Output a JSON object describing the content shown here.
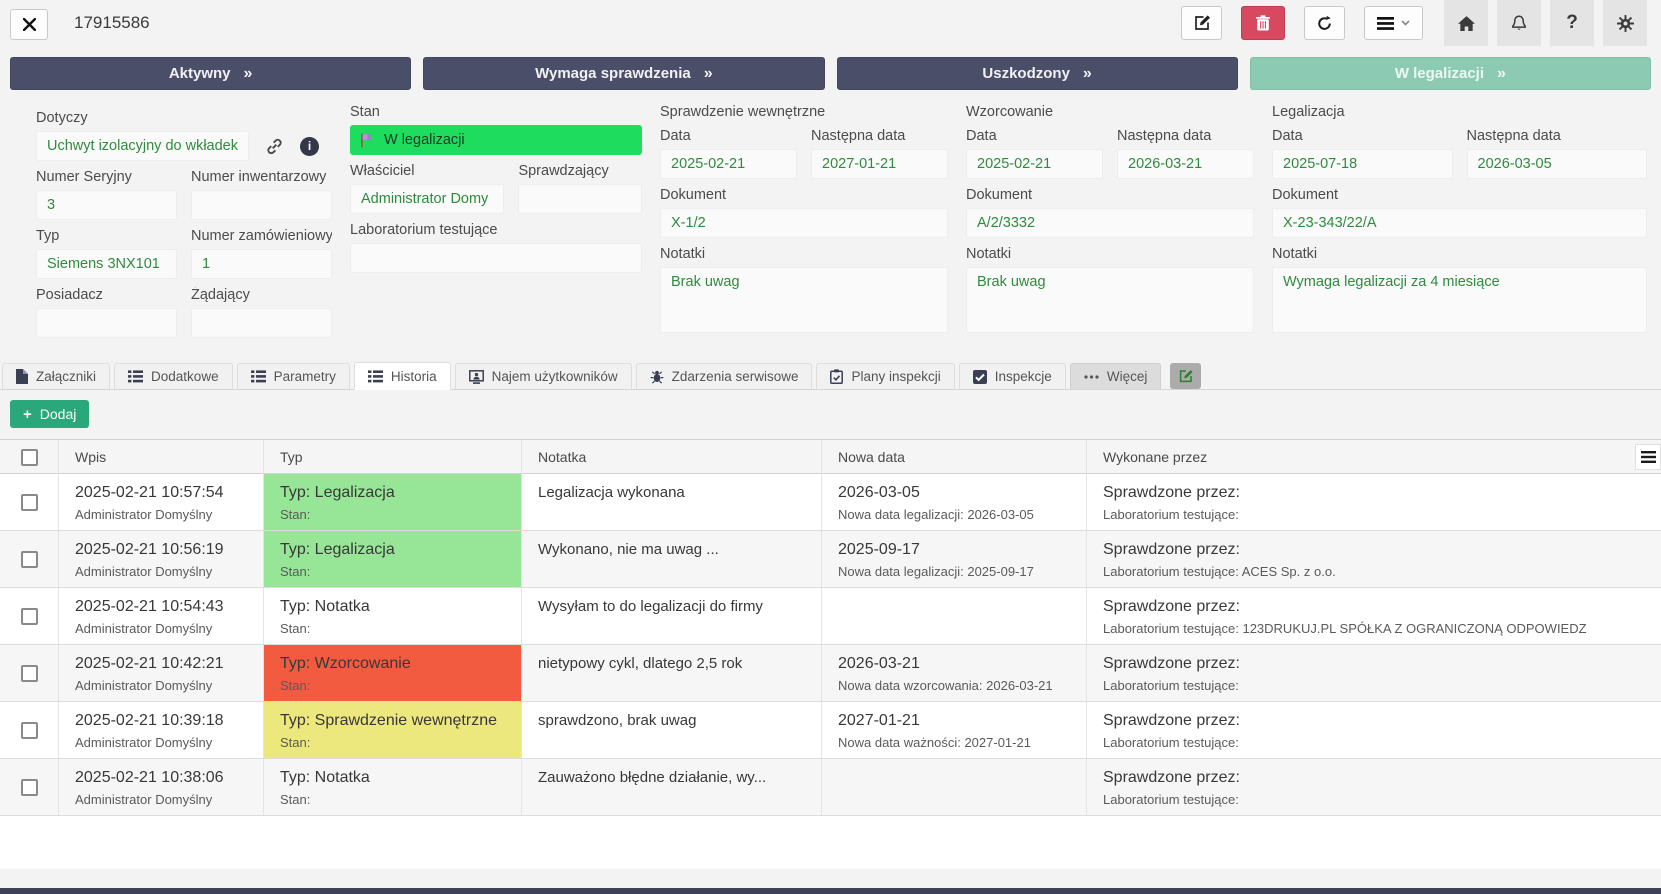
{
  "topbar": {
    "title": "17915586",
    "help_label": "?"
  },
  "status_arrow": "»",
  "info_glyph": "i",
  "statuses": [
    {
      "label": "Aktywny",
      "style": "dark"
    },
    {
      "label": "Wymaga sprawdzenia",
      "style": "dark"
    },
    {
      "label": "Uszkodzony",
      "style": "dark"
    },
    {
      "label": "W legalizacji",
      "style": "teal"
    }
  ],
  "form": {
    "dotyczy": {
      "label": "Dotyczy",
      "value": "Uchwyt izolacyjny do wkładek"
    },
    "numer_seryjny": {
      "label": "Numer Seryjny",
      "value": "3"
    },
    "numer_inwentarzowy": {
      "label": "Numer inwentarzowy",
      "value": ""
    },
    "typ": {
      "label": "Typ",
      "value": "Siemens 3NX101"
    },
    "numer_zamowieniowy": {
      "label": "Numer zamówieniowy",
      "value": "1"
    },
    "posiadacz": {
      "label": "Posiadacz",
      "value": ""
    },
    "zadajacy": {
      "label": "Żądający",
      "value": ""
    },
    "stan": {
      "label": "Stan",
      "value": "W legalizacji"
    },
    "wlasciciel": {
      "label": "Właściciel",
      "value": "Administrator Domy"
    },
    "sprawdzajacy": {
      "label": "Sprawdzający",
      "value": ""
    },
    "laboratorium": {
      "label": "Laboratorium testujące",
      "value": ""
    },
    "sections": [
      {
        "title": "Sprawdzenie wewnętrzne",
        "date_label": "Data",
        "date": "2025-02-21",
        "next_label": "Następna data",
        "next_date": "2027-01-21",
        "doc_label": "Dokument",
        "doc": "X-1/2",
        "notes_label": "Notatki",
        "notes": "Brak uwag"
      },
      {
        "title": "Wzorcowanie",
        "date_label": "Data",
        "date": "2025-02-21",
        "next_label": "Następna data",
        "next_date": "2026-03-21",
        "doc_label": "Dokument",
        "doc": "A/2/3332",
        "notes_label": "Notatki",
        "notes": "Brak uwag"
      },
      {
        "title": "Legalizacja",
        "date_label": "Data",
        "date": "2025-07-18",
        "next_label": "Następna data",
        "next_date": "2026-03-05",
        "doc_label": "Dokument",
        "doc": "X-23-343/22/A",
        "notes_label": "Notatki",
        "notes": "Wymaga legalizacji za 4 miesiące"
      }
    ]
  },
  "tabs": [
    {
      "label": "Załączniki",
      "icon": "file-icon",
      "active": false,
      "muted": false
    },
    {
      "label": "Dodatkowe",
      "icon": "list-icon",
      "active": false,
      "muted": false
    },
    {
      "label": "Parametry",
      "icon": "list-icon",
      "active": false,
      "muted": false
    },
    {
      "label": "Historia",
      "icon": "list-icon",
      "active": true,
      "muted": false
    },
    {
      "label": "Najem użytkowników",
      "icon": "user-screen-icon",
      "active": false,
      "muted": false
    },
    {
      "label": "Zdarzenia serwisowe",
      "icon": "bug-icon",
      "active": false,
      "muted": false
    },
    {
      "label": "Plany inspekcji",
      "icon": "clipboard-check-icon",
      "active": false,
      "muted": false
    },
    {
      "label": "Inspekcje",
      "icon": "checkbox-icon",
      "active": false,
      "muted": false
    },
    {
      "label": "Więcej",
      "icon": "ellipsis-icon",
      "active": false,
      "muted": true
    }
  ],
  "add_button": {
    "plus": "+",
    "label": "Dodaj"
  },
  "table": {
    "columns": [
      "Wpis",
      "Typ",
      "Notatka",
      "Nowa data",
      "Wykonane przez"
    ],
    "rows": [
      {
        "timestamp": "2025-02-21 10:57:54",
        "author": "Administrator Domyślny",
        "type": "Typ: Legalizacja",
        "stan": "Stan:",
        "highlight": "green",
        "note": "Legalizacja wykonana",
        "new_date": "2026-03-05",
        "new_date_note": "Nowa data legalizacji: 2026-03-05",
        "done_by": "Sprawdzone przez:",
        "lab": "Laboratorium testujące:"
      },
      {
        "timestamp": "2025-02-21 10:56:19",
        "author": "Administrator Domyślny",
        "type": "Typ: Legalizacja",
        "stan": "Stan:",
        "highlight": "green",
        "note": "Wykonano, nie ma uwag ...",
        "new_date": "2025-09-17",
        "new_date_note": "Nowa data legalizacji: 2025-09-17",
        "done_by": "Sprawdzone przez:",
        "lab": "Laboratorium testujące: ACES Sp. z o.o."
      },
      {
        "timestamp": "2025-02-21 10:54:43",
        "author": "Administrator Domyślny",
        "type": "Typ: Notatka",
        "stan": "Stan:",
        "highlight": "none",
        "note": "Wysyłam to do legalizacji do firmy",
        "new_date": "",
        "new_date_note": "",
        "done_by": "Sprawdzone przez:",
        "lab": "Laboratorium testujące: 123DRUKUJ.PL SPÓŁKA Z OGRANICZONĄ ODPOWIEDZ"
      },
      {
        "timestamp": "2025-02-21 10:42:21",
        "author": "Administrator Domyślny",
        "type": "Typ: Wzorcowanie",
        "stan": "Stan:",
        "highlight": "red",
        "note": "nietypowy cykl, dlatego 2,5 rok",
        "new_date": "2026-03-21",
        "new_date_note": "Nowa data wzorcowania: 2026-03-21",
        "done_by": "Sprawdzone przez:",
        "lab": "Laboratorium testujące:"
      },
      {
        "timestamp": "2025-02-21 10:39:18",
        "author": "Administrator Domyślny",
        "type": "Typ: Sprawdzenie wewnętrzne",
        "stan": "Stan:",
        "highlight": "yellow",
        "note": "sprawdzono, brak uwag",
        "new_date": "2027-01-21",
        "new_date_note": "Nowa data ważności: 2027-01-21",
        "done_by": "Sprawdzone przez:",
        "lab": "Laboratorium testujące:"
      },
      {
        "timestamp": "2025-02-21 10:38:06",
        "author": "Administrator Domyślny",
        "type": "Typ: Notatka",
        "stan": "Stan:",
        "highlight": "none",
        "note": "Zauważono błędne działanie, wy...",
        "new_date": "",
        "new_date_note": "",
        "done_by": "Sprawdzone przez:",
        "lab": "Laboratorium testujące:"
      }
    ]
  },
  "colors": {
    "status_dark": "#4b4e68",
    "status_teal": "#8ccab4",
    "stan_green": "#1edd5e",
    "value_green": "#2e8b3d",
    "delete_red": "#d6495f",
    "add_green": "#2aa77b",
    "type_green": "#97e597",
    "type_red": "#f25b40",
    "type_yellow": "#ece87e"
  }
}
